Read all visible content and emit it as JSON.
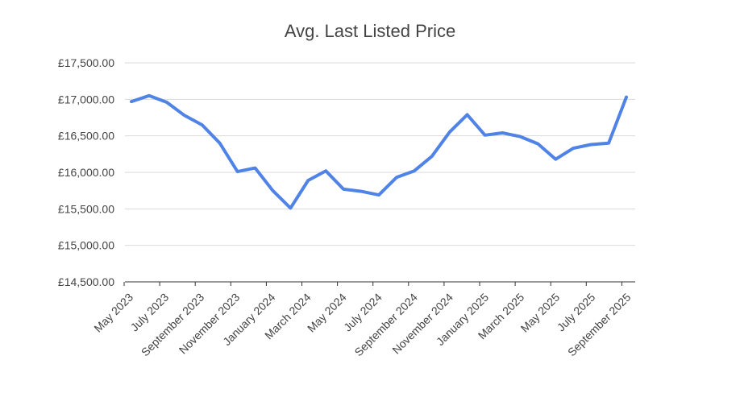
{
  "chart_data": {
    "type": "line",
    "title": "Avg. Last Listed Price",
    "xlabel": "",
    "ylabel": "",
    "ylim": [
      14500,
      17500
    ],
    "y_ticks": [
      "£14,500.00",
      "£15,000.00",
      "£15,500.00",
      "£16,000.00",
      "£16,500.00",
      "£17,000.00",
      "£17,500.00"
    ],
    "y_tick_values": [
      14500,
      15000,
      15500,
      16000,
      16500,
      17000,
      17500
    ],
    "x_tick_labels": [
      "May 2023",
      "July 2023",
      "September 2023",
      "November 2023",
      "January 2024",
      "March 2024",
      "May 2024",
      "July 2024",
      "September 2024",
      "November 2024",
      "January 2025",
      "March 2025",
      "May 2025",
      "July 2025",
      "September 2025"
    ],
    "grid": true,
    "legend": "none",
    "line_color": "#5083e6",
    "series": [
      {
        "x": [
          "May 2023",
          "Jun 2023",
          "Jul 2023",
          "Aug 2023",
          "Sep 2023",
          "Oct 2023",
          "Nov 2023",
          "Dec 2023",
          "Jan 2024",
          "Feb 2024",
          "Mar 2024",
          "Apr 2024",
          "May 2024",
          "Jun 2024",
          "Jul 2024",
          "Aug 2024",
          "Sep 2024",
          "Oct 2024",
          "Nov 2024",
          "Dec 2024",
          "Jan 2025",
          "Feb 2025",
          "Mar 2025",
          "Apr 2025",
          "May 2025",
          "Jun 2025",
          "Jul 2025",
          "Aug 2025",
          "Sep 2025"
        ],
        "values": [
          16970,
          17050,
          16960,
          16780,
          16650,
          16400,
          16010,
          16060,
          15750,
          15510,
          15890,
          16020,
          15770,
          15740,
          15690,
          15930,
          16020,
          16220,
          16550,
          16790,
          16510,
          16540,
          16490,
          16390,
          16180,
          16330,
          16380,
          16400,
          17030
        ]
      }
    ]
  }
}
